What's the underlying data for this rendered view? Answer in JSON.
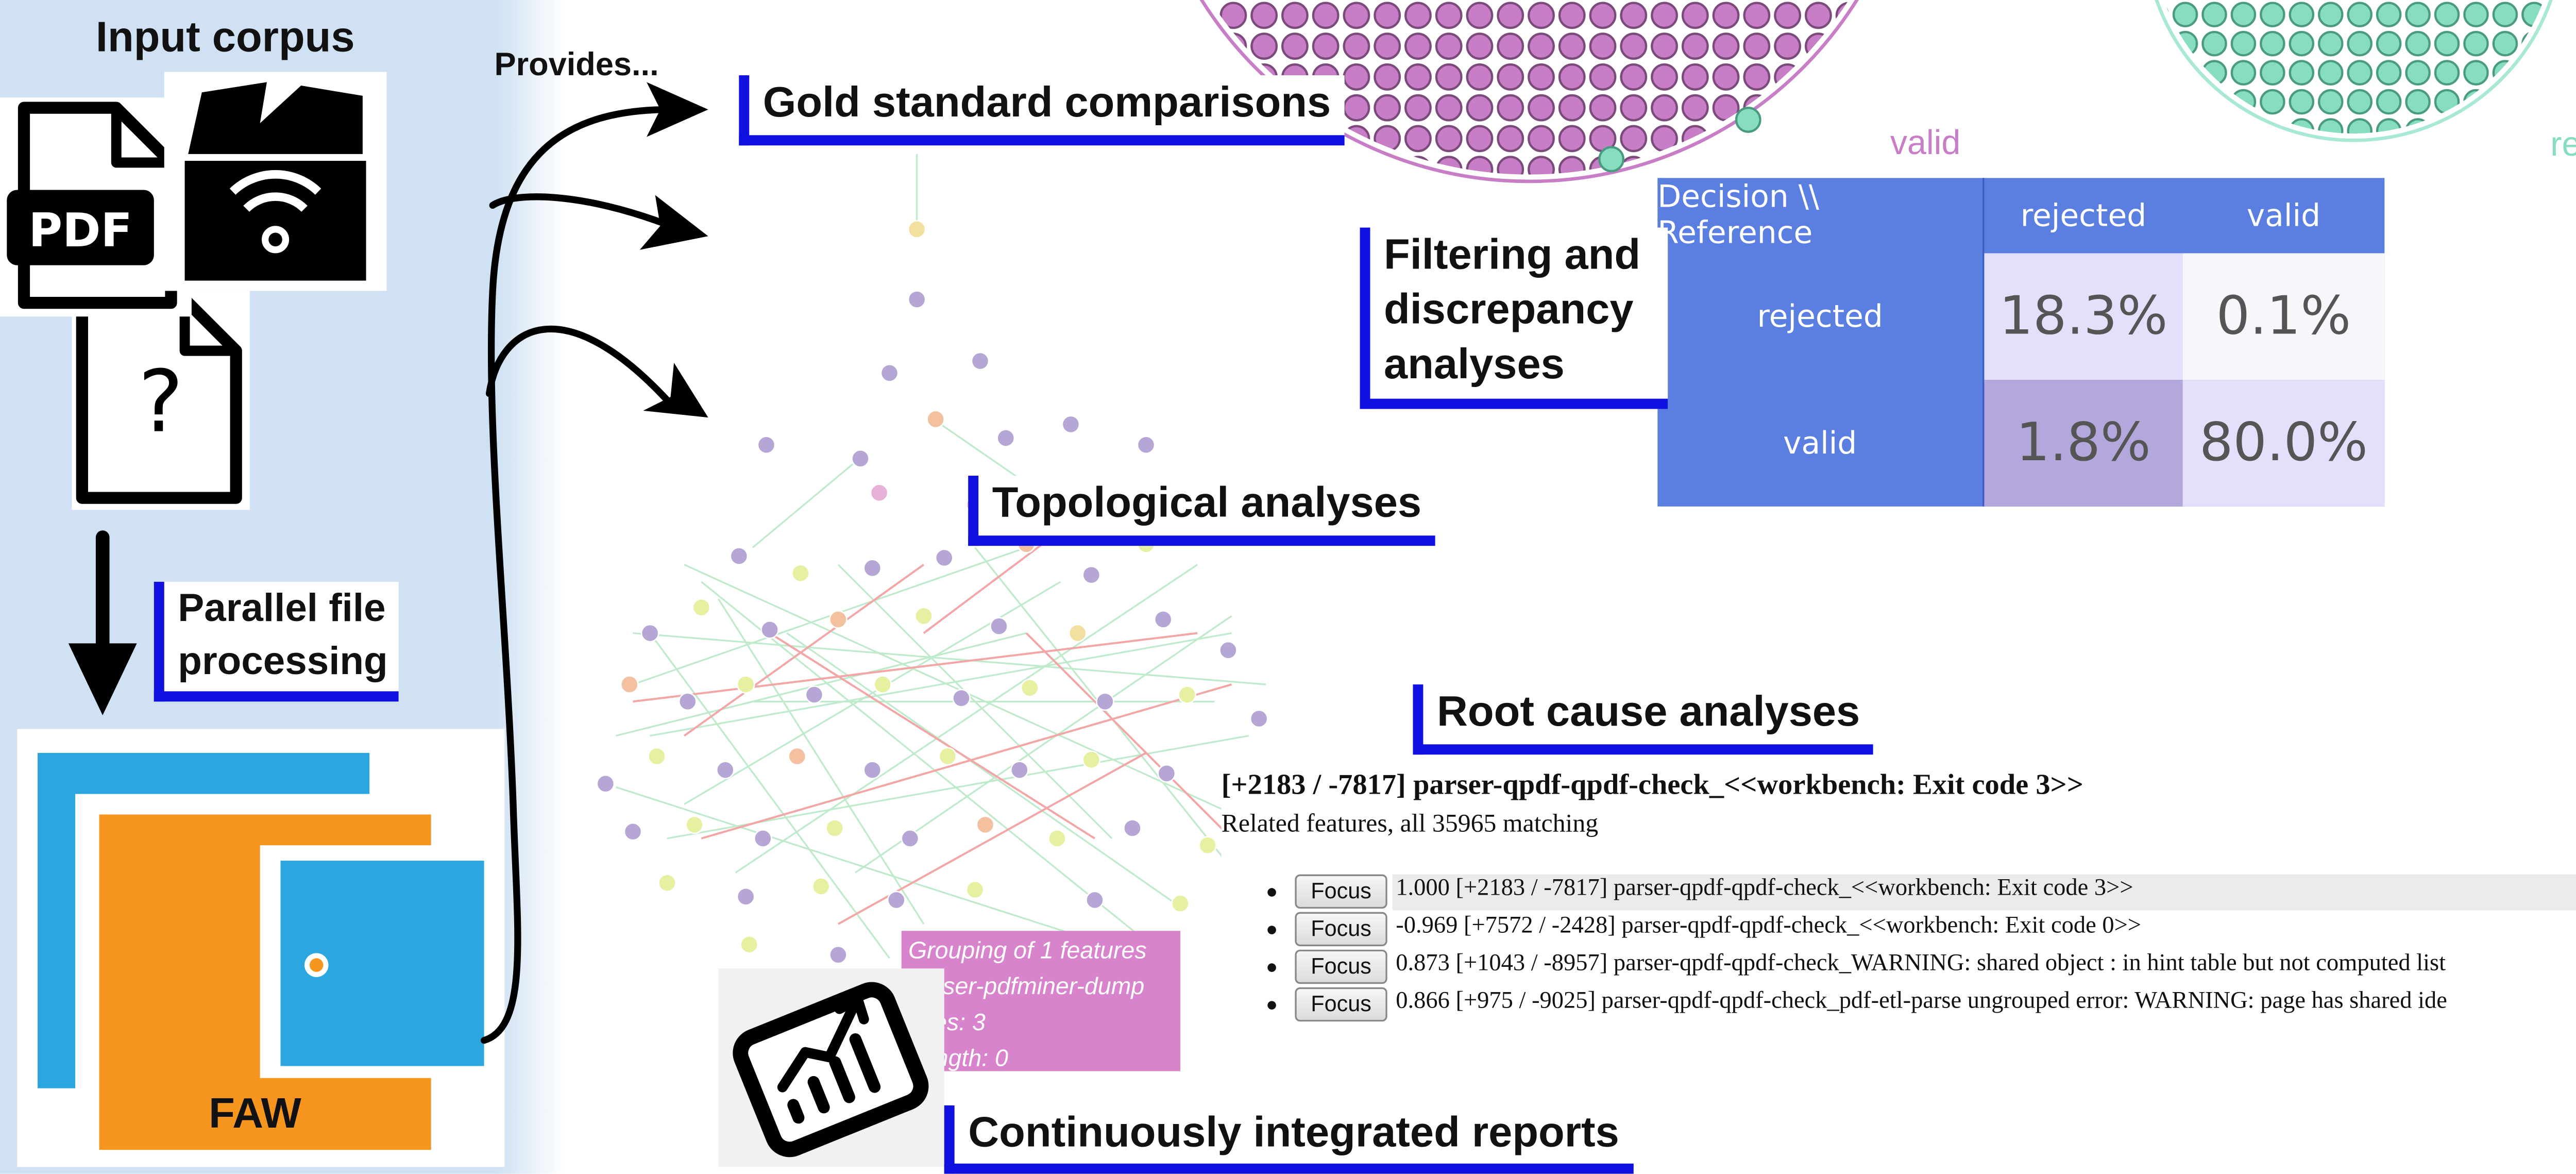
{
  "input": {
    "title": "Input corpus",
    "pdf_label": "PDF",
    "unknown_label": "?"
  },
  "processing": {
    "label_line1": "Parallel file",
    "label_line2": "processing",
    "app_label": "FAW"
  },
  "provides_label": "Provides...",
  "analyses": {
    "gold": "Gold standard comparisons",
    "filtering_line1": "Filtering and",
    "filtering_line2": "discrepancy",
    "filtering_line3": "analyses",
    "topological": "Topological analyses",
    "root_cause": "Root cause analyses",
    "reports": "Continuously integrated reports"
  },
  "circles": {
    "valid_label": "valid",
    "rejected_label": "rejected"
  },
  "confusion": {
    "corner_label": "Decision \\\\ Reference",
    "columns": [
      "rejected",
      "valid"
    ],
    "rows": [
      {
        "label": "rejected",
        "values": [
          "18.3%",
          "0.1%"
        ]
      },
      {
        "label": "valid",
        "values": [
          "1.8%",
          "80.0%"
        ]
      }
    ],
    "colors": {
      "header": "#5b7fe0",
      "cell_strong": "#b3a7db",
      "cell_light": "#e4e0fb",
      "cell_pale": "#f6f6fb"
    }
  },
  "tooltip": {
    "line1": "Grouping of 1 features",
    "line2": "parser-pdfminer-dump",
    "line3": "Files: 3",
    "line4": "Length: 0"
  },
  "root_cause": {
    "heading": "[+2183 / -7817] parser-qpdf-qpdf-check_<<workbench: Exit code 3>>",
    "subheading": "Related features, all 35965 matching",
    "focus_label": "Focus",
    "items": [
      "1.000 [+2183 / -7817] parser-qpdf-qpdf-check_<<workbench: Exit code 3>>",
      "-0.969 [+7572 / -2428] parser-qpdf-qpdf-check_<<workbench: Exit code 0>>",
      "0.873 [+1043 / -8957] parser-qpdf-qpdf-check_WARNING: shared object : in hint table but not computed list",
      "0.866 [+975 / -9025] parser-qpdf-qpdf-check_pdf-etl-parse ungrouped error: WARNING: page  has shared ide"
    ]
  }
}
